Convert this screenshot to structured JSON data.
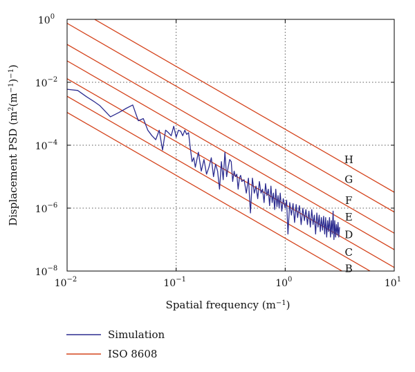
{
  "colors": {
    "simulation": "#2b2b8f",
    "iso": "#d4431c",
    "grid": "#555555",
    "axis": "#000000"
  },
  "chart_data": {
    "type": "line",
    "title": "",
    "xlabel": "Spatial frequency (m",
    "xlabel_sup": "−1",
    "xlabel_tail": ")",
    "ylabel": "Displacement PSD (m",
    "ylabel_sup1": "2",
    "ylabel_mid": "(m",
    "ylabel_sup2": "−1",
    "ylabel_tail": ")",
    "ylabel_sup3": "−1",
    "ylabel_end": ")",
    "x_scale": "log",
    "y_scale": "log",
    "xlim": [
      0.01,
      10
    ],
    "ylim": [
      1e-08,
      1
    ],
    "grid": "dotted",
    "legend_position": "below",
    "x_ticks": [
      {
        "base": "10",
        "exp": "−2",
        "value": 0.01
      },
      {
        "base": "10",
        "exp": "−1",
        "value": 0.1
      },
      {
        "base": "10",
        "exp": "0",
        "value": 1
      },
      {
        "base": "10",
        "exp": "1",
        "value": 10
      }
    ],
    "y_ticks": [
      {
        "base": "10",
        "exp": "0",
        "value": 1
      },
      {
        "base": "10",
        "exp": "−2",
        "value": 0.01
      },
      {
        "base": "10",
        "exp": "−4",
        "value": 0.0001
      },
      {
        "base": "10",
        "exp": "−6",
        "value": 1e-06
      },
      {
        "base": "10",
        "exp": "−8",
        "value": 1e-08
      }
    ],
    "iso_lines": {
      "name": "ISO 8608",
      "slope": -2,
      "classes": [
        {
          "label": "B",
          "value_at_1": 1.1e-07
        },
        {
          "label": "C",
          "value_at_1": 3.6e-07
        },
        {
          "label": "D",
          "value_at_1": 1.3e-06
        },
        {
          "label": "E",
          "value_at_1": 4.8e-06
        },
        {
          "label": "F",
          "value_at_1": 1.6e-05
        },
        {
          "label": "G",
          "value_at_1": 7.5e-05
        },
        {
          "label": "H",
          "value_at_1": 0.00032
        }
      ]
    },
    "series": [
      {
        "name": "Simulation",
        "x": [
          0.01,
          0.0125,
          0.015,
          0.0175,
          0.02,
          0.025,
          0.03,
          0.035,
          0.04,
          0.045,
          0.05,
          0.055,
          0.06,
          0.065,
          0.07,
          0.075,
          0.08,
          0.085,
          0.09,
          0.095,
          0.1,
          0.105,
          0.11,
          0.115,
          0.12,
          0.125,
          0.13,
          0.135,
          0.14,
          0.145,
          0.15,
          0.16,
          0.17,
          0.18,
          0.19,
          0.2,
          0.21,
          0.22,
          0.23,
          0.24,
          0.25,
          0.26,
          0.27,
          0.28,
          0.29,
          0.3,
          0.31,
          0.32,
          0.33,
          0.34,
          0.35,
          0.36,
          0.37,
          0.38,
          0.39,
          0.4,
          0.42,
          0.44,
          0.46,
          0.48,
          0.5,
          0.52,
          0.54,
          0.56,
          0.58,
          0.6,
          0.62,
          0.64,
          0.66,
          0.68,
          0.7,
          0.72,
          0.74,
          0.76,
          0.78,
          0.8,
          0.82,
          0.84,
          0.86,
          0.88,
          0.9,
          0.93,
          0.96,
          1.0,
          1.03,
          1.06,
          1.1,
          1.14,
          1.18,
          1.22,
          1.26,
          1.3,
          1.35,
          1.4,
          1.45,
          1.5,
          1.55,
          1.6,
          1.65,
          1.7,
          1.75,
          1.8,
          1.85,
          1.9,
          1.95,
          2.0,
          2.05,
          2.1,
          2.15,
          2.2,
          2.25,
          2.3,
          2.35,
          2.4,
          2.45,
          2.5,
          2.55,
          2.6,
          2.65,
          2.7,
          2.75,
          2.8,
          2.85,
          2.9,
          2.95,
          3.0,
          3.05,
          3.1,
          3.15
        ],
        "values": [
          0.006,
          0.0055,
          0.0035,
          0.0025,
          0.0018,
          0.0008,
          0.0011,
          0.0015,
          0.0019,
          0.0006,
          0.0007,
          0.0003,
          0.0002,
          0.00015,
          0.0003,
          7e-05,
          0.0003,
          0.00025,
          0.0002,
          0.0004,
          0.00018,
          0.0003,
          0.00028,
          0.0002,
          0.0003,
          0.00022,
          0.00025,
          8e-05,
          3e-05,
          4e-05,
          2e-05,
          6e-05,
          1.5e-05,
          3.5e-05,
          1.2e-05,
          2e-05,
          4e-05,
          1e-05,
          2.5e-05,
          1.5e-05,
          4e-06,
          3e-05,
          8e-06,
          6e-05,
          1e-05,
          2e-05,
          3.5e-05,
          3e-05,
          7e-06,
          1.5e-05,
          1e-05,
          1.2e-05,
          4e-06,
          9e-06,
          1.1e-05,
          7e-06,
          8e-06,
          3e-06,
          9e-06,
          7e-07,
          9e-06,
          3e-06,
          5e-06,
          2e-06,
          7e-06,
          3e-06,
          4e-06,
          1.5e-06,
          6e-06,
          2.5e-06,
          4e-06,
          1.2e-06,
          5e-06,
          1.5e-06,
          3e-06,
          9e-07,
          4e-06,
          1.1e-06,
          2.5e-06,
          1e-06,
          3e-06,
          8e-07,
          2e-06,
          1e-06,
          1.8e-06,
          1.5e-07,
          1.5e-06,
          6e-07,
          1.4e-06,
          3.5e-07,
          1.3e-06,
          5e-07,
          1.2e-06,
          3e-07,
          1e-06,
          4e-07,
          9e-07,
          3e-07,
          8e-07,
          2.5e-07,
          9e-07,
          3e-07,
          6e-07,
          1.5e-07,
          7e-07,
          2.5e-07,
          6e-07,
          1.8e-07,
          5e-07,
          2e-07,
          5.5e-07,
          1.5e-07,
          5e-07,
          1.2e-07,
          4e-07,
          1.8e-07,
          5e-07,
          1.2e-07,
          4e-07,
          1.5e-07,
          8e-07,
          1e-07,
          4e-07,
          1.2e-07,
          3e-07,
          1.4e-07,
          3.5e-07,
          1.2e-07,
          2.5e-07
        ]
      }
    ]
  },
  "legend": {
    "items": [
      {
        "label": "Simulation"
      },
      {
        "label": "ISO 8608"
      }
    ]
  }
}
